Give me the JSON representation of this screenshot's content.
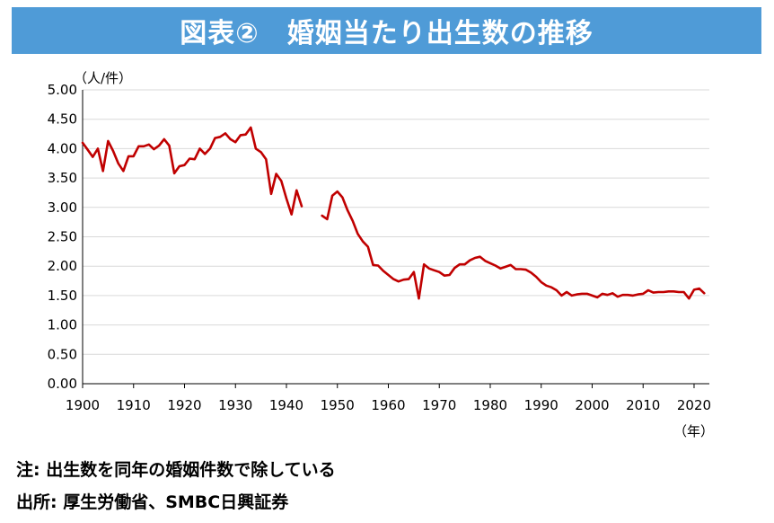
{
  "title": "図表②　婚姻当たり出生数の推移",
  "notes": {
    "note": "注: 出生数を同年の婚姻件数で除している",
    "source": "出所: 厚生労働省、SMBC日興証券"
  },
  "colors": {
    "title_bg": "#4f9bd7",
    "line": "#c00000",
    "grid": "#d9d9d9"
  },
  "chart_data": {
    "type": "line",
    "title": "",
    "ylabel": "（人/件）",
    "xlabel": "（年）",
    "ylim": [
      0,
      5
    ],
    "xlim": [
      1900,
      2022
    ],
    "y_ticks": [
      "0.00",
      "0.50",
      "1.00",
      "1.50",
      "2.00",
      "2.50",
      "3.00",
      "3.50",
      "4.00",
      "4.50",
      "5.00"
    ],
    "x_ticks": [
      "1900",
      "1910",
      "1920",
      "1930",
      "1940",
      "1950",
      "1960",
      "1970",
      "1980",
      "1990",
      "2000",
      "2010",
      "2020"
    ],
    "grid": "horizontal",
    "series": [
      {
        "segments": [
          {
            "x": [
              1900,
              1901,
              1902,
              1903,
              1904,
              1905,
              1906,
              1907,
              1908,
              1909,
              1910,
              1911,
              1912,
              1913,
              1914,
              1915,
              1916,
              1917,
              1918,
              1919,
              1920,
              1921,
              1922,
              1923,
              1924,
              1925,
              1926,
              1927,
              1928,
              1929,
              1930,
              1931,
              1932,
              1933,
              1934,
              1935,
              1936,
              1937,
              1938,
              1939,
              1940,
              1941,
              1942,
              1943
            ],
            "y": [
              4.1,
              3.98,
              3.86,
              4.0,
              3.62,
              4.13,
              3.96,
              3.75,
              3.62,
              3.87,
              3.87,
              4.04,
              4.04,
              4.07,
              3.99,
              4.05,
              4.16,
              4.05,
              3.58,
              3.7,
              3.72,
              3.83,
              3.82,
              4.0,
              3.91,
              4.0,
              4.18,
              4.2,
              4.26,
              4.16,
              4.11,
              4.23,
              4.24,
              4.36,
              4.0,
              3.94,
              3.82,
              3.23,
              3.57,
              3.45,
              3.15,
              2.88,
              3.29,
              3.02
            ]
          },
          {
            "x": [
              1947,
              1948,
              1949,
              1950,
              1951,
              1952,
              1953,
              1954,
              1955,
              1956,
              1957,
              1958,
              1959,
              1960,
              1961,
              1962,
              1963,
              1964,
              1965,
              1966,
              1967,
              1968,
              1969,
              1970,
              1971,
              1972,
              1973,
              1974,
              1975,
              1976,
              1977,
              1978,
              1979,
              1980,
              1981,
              1982,
              1983,
              1984,
              1985,
              1986,
              1987,
              1988,
              1989,
              1990,
              1991,
              1992,
              1993,
              1994,
              1995,
              1996,
              1997,
              1998,
              1999,
              2000,
              2001,
              2002,
              2003,
              2004,
              2005,
              2006,
              2007,
              2008,
              2009,
              2010,
              2011,
              2012,
              2013,
              2014,
              2015,
              2016,
              2017,
              2018,
              2019,
              2020,
              2021,
              2022
            ],
            "y": [
              2.86,
              2.8,
              3.2,
              3.27,
              3.17,
              2.95,
              2.77,
              2.55,
              2.42,
              2.33,
              2.02,
              2.01,
              1.92,
              1.85,
              1.78,
              1.74,
              1.77,
              1.78,
              1.9,
              1.45,
              2.03,
              1.96,
              1.93,
              1.9,
              1.84,
              1.85,
              1.97,
              2.03,
              2.03,
              2.1,
              2.14,
              2.16,
              2.09,
              2.05,
              2.01,
              1.96,
              1.99,
              2.02,
              1.95,
              1.95,
              1.94,
              1.89,
              1.82,
              1.73,
              1.67,
              1.64,
              1.59,
              1.5,
              1.56,
              1.5,
              1.52,
              1.53,
              1.53,
              1.5,
              1.47,
              1.53,
              1.51,
              1.54,
              1.48,
              1.51,
              1.51,
              1.5,
              1.52,
              1.53,
              1.59,
              1.55,
              1.56,
              1.56,
              1.57,
              1.57,
              1.56,
              1.56,
              1.45,
              1.6,
              1.62,
              1.54
            ]
          }
        ]
      }
    ]
  }
}
